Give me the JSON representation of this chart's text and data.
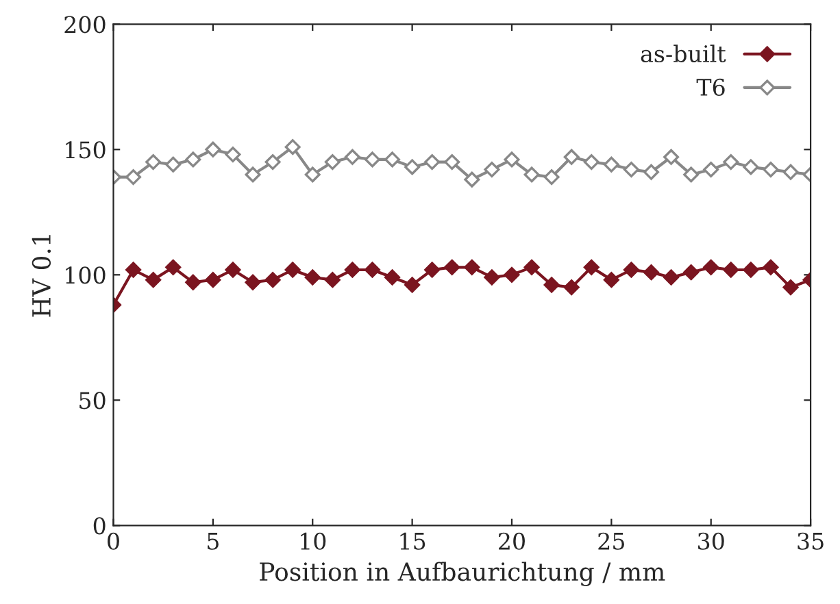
{
  "chart_data": {
    "type": "line",
    "xlabel": "Position in Aufbaurichtung / mm",
    "ylabel": "HV 0.1",
    "x": [
      0,
      1,
      2,
      3,
      4,
      5,
      6,
      7,
      8,
      9,
      10,
      11,
      12,
      13,
      14,
      15,
      16,
      17,
      18,
      19,
      20,
      21,
      22,
      23,
      24,
      25,
      26,
      27,
      28,
      29,
      30,
      31,
      32,
      33,
      34,
      35
    ],
    "series": [
      {
        "name": "as-built",
        "color": "#7b1520",
        "marker": "diamond",
        "values": [
          88,
          102,
          98,
          103,
          97,
          98,
          102,
          97,
          98,
          102,
          99,
          98,
          102,
          102,
          99,
          96,
          102,
          103,
          103,
          99,
          100,
          103,
          96,
          95,
          103,
          98,
          102,
          101,
          99,
          101,
          103,
          102,
          102,
          103,
          95,
          98
        ]
      },
      {
        "name": "T6",
        "color": "#888888",
        "marker": "diamond",
        "values": [
          139,
          139,
          145,
          144,
          146,
          150,
          148,
          140,
          145,
          151,
          140,
          145,
          147,
          146,
          146,
          143,
          145,
          145,
          138,
          142,
          146,
          140,
          139,
          147,
          145,
          144,
          142,
          141,
          147,
          140,
          142,
          145,
          143,
          142,
          141,
          140
        ]
      }
    ],
    "xlim": [
      0,
      35
    ],
    "xticks": [
      0,
      5,
      10,
      15,
      20,
      25,
      30,
      35
    ],
    "ylim": [
      0,
      200
    ],
    "yticks": [
      0,
      50,
      100,
      150,
      200
    ],
    "grid": false,
    "legend": "top right",
    "line_style": "solid"
  }
}
